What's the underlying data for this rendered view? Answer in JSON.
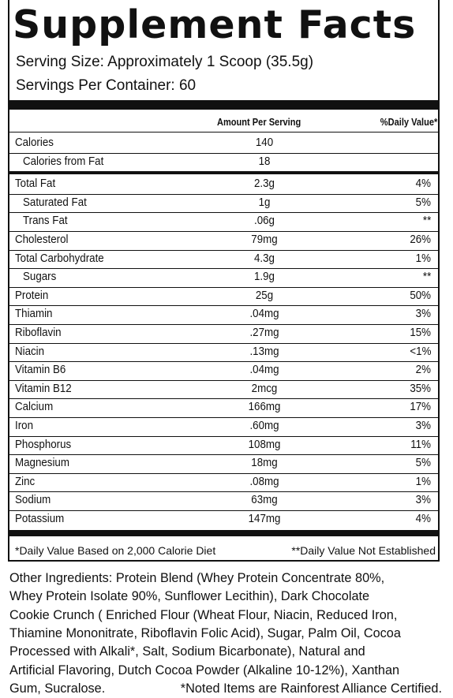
{
  "header": {
    "title": "Supplement Facts",
    "serving_size": "Serving Size: Approximately 1 Scoop (35.5g)",
    "servings_per_container": "Servings Per Container: 60"
  },
  "table": {
    "headers": [
      "Amount Per Serving",
      "%Daily Value*"
    ],
    "rows": [
      {
        "name": "Calories",
        "amount": "140"
      },
      {
        "name": "Calories from Fat",
        "amount": "18"
      },
      {
        "name": "Total Fat",
        "amount": "2.3g",
        "daily_value": "4%"
      },
      {
        "name": "Saturated Fat",
        "amount": "1g",
        "daily_value": "5%"
      },
      {
        "name": "Trans Fat",
        "amount": ".06g",
        "daily_value": "**"
      },
      {
        "name": "Cholesterol",
        "amount": "79mg",
        "daily_value": "26%"
      },
      {
        "name": "Total Carbohydrate",
        "amount": "4.3g",
        "daily_value": "1%"
      },
      {
        "name": "Sugars",
        "amount": "1.9g",
        "daily_value": "**"
      },
      {
        "name": "Protein",
        "amount": "25g",
        "daily_value": "50%"
      },
      {
        "name": "Thiamin",
        "amount": ".04mg",
        "daily_value": "3%"
      },
      {
        "name": "Riboflavin",
        "amount": ".27mg",
        "daily_value": "15%"
      },
      {
        "name": "Niacin",
        "amount": ".13mg",
        "daily_value": "<1%"
      },
      {
        "name": "Vitamin B6",
        "amount": ".04mg",
        "daily_value": "2%"
      },
      {
        "name": "Vitamin B12",
        "amount": "2mcg",
        "daily_value": "35%"
      },
      {
        "name": "Calcium",
        "amount": "166mg",
        "daily_value": "17%"
      },
      {
        "name": "Iron",
        "amount": ".60mg",
        "daily_value": "3%"
      },
      {
        "name": "Phosphorus",
        "amount": "108mg",
        "daily_value": "11%"
      },
      {
        "name": "Magnesium",
        "amount": "18mg",
        "daily_value": "5%"
      },
      {
        "name": "Zinc",
        "amount": ".08mg",
        "daily_value": "1%"
      },
      {
        "name": "Sodium",
        "amount": "63mg",
        "daily_value": "3%"
      },
      {
        "name": "Potassium",
        "amount": "147mg",
        "daily_value": "4%"
      }
    ],
    "footnotes": [
      "*Daily Value Based on 2,000 Calorie Diet",
      "**Daily Value Not Established"
    ]
  },
  "other_ingredients": {
    "lines": [
      "Other Ingredients: Protein Blend (Whey Protein Concentrate 80%,",
      "Whey Protein Isolate 90%, Sunflower Lecithin), Dark Chocolate",
      "Cookie Crunch ( Enriched Flour (Wheat Flour, Niacin, Reduced Iron,",
      "Thiamine Mononitrate, Riboflavin Folic Acid), Sugar, Palm Oil, Cocoa",
      "Processed with Alkali*, Salt, Sodium Bicarbonate), Natural and",
      "Artificial Flavoring, Dutch Cocoa Powder (Alkaline 10-12%), Xanthan",
      "Gum, Sucralose."
    ],
    "note": "*Noted Items are Rainforest Alliance Certified."
  }
}
